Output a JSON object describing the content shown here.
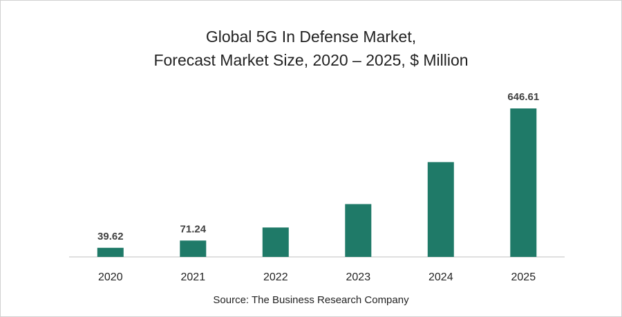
{
  "title_line1": "Global 5G In Defense Market,",
  "title_line2": "Forecast Market Size, 2020 – 2025, $ Million",
  "source": "Source: The Business Research Company",
  "colors": {
    "bar": "#1f7a68",
    "axis": "#bfbfbf"
  },
  "chart_data": {
    "type": "bar",
    "title": "Global 5G In Defense Market, Forecast Market Size, 2020 – 2025, $ Million",
    "categories": [
      "2020",
      "2021",
      "2022",
      "2023",
      "2024",
      "2025"
    ],
    "values": [
      39.62,
      71.24,
      128,
      230,
      413,
      646.61
    ],
    "data_labels": [
      "39.62",
      "71.24",
      "",
      "",
      "",
      "646.61"
    ],
    "xlabel": "",
    "ylabel": "",
    "ylim": [
      0,
      660
    ],
    "grid": false,
    "legend": "none"
  }
}
